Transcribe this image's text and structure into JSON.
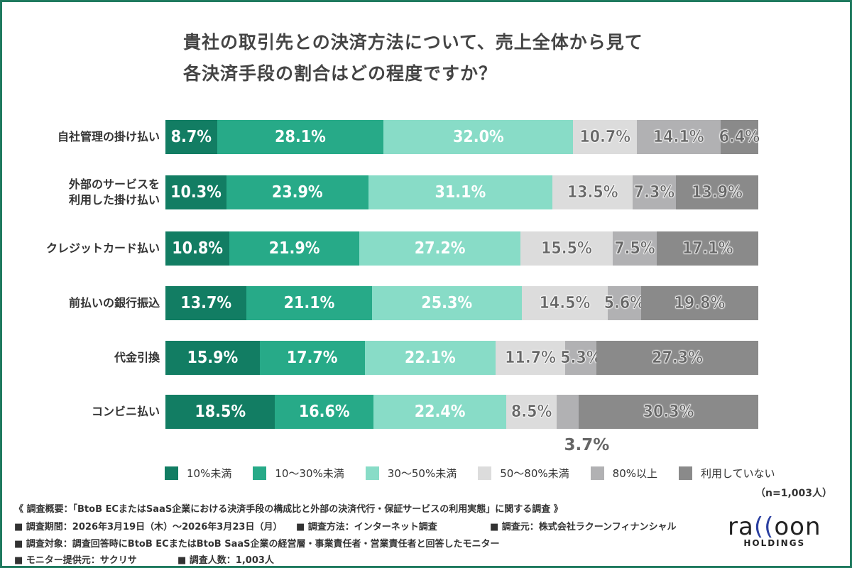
{
  "chart_data": {
    "type": "bar",
    "orientation": "horizontal",
    "stacked": true,
    "title": "貴社の取引先との決済方法について、売上全体から見て 各決済手段の割合はどの程度ですか？",
    "title_lines": [
      "貴社の取引先との決済方法について、売上全体から見て",
      "各決済手段の割合はどの程度ですか？"
    ],
    "categories": [
      "自社管理の掛け払い",
      "外部のサービスを利用した掛け払い",
      "クレジットカード払い",
      "前払いの銀行振込",
      "代金引換",
      "コンビニ払い"
    ],
    "category_lines": [
      [
        "自社管理の掛け払い"
      ],
      [
        "外部のサービスを",
        "利用した掛け払い"
      ],
      [
        "クレジットカード払い"
      ],
      [
        "前払いの銀行振込"
      ],
      [
        "代金引換"
      ],
      [
        "コンビニ払い"
      ]
    ],
    "series": [
      {
        "name": "10%未満",
        "color": "#127d63",
        "values": [
          8.7,
          10.3,
          10.8,
          13.7,
          15.9,
          18.5
        ]
      },
      {
        "name": "10～30%未満",
        "color": "#27aa88",
        "values": [
          28.1,
          23.9,
          21.9,
          21.1,
          17.7,
          16.6
        ]
      },
      {
        "name": "30～50%未満",
        "color": "#88dcc7",
        "values": [
          32.0,
          31.1,
          27.2,
          25.3,
          22.1,
          22.4
        ]
      },
      {
        "name": "50～80%未満",
        "color": "#dcdcdc",
        "values": [
          10.7,
          13.5,
          15.5,
          14.5,
          11.7,
          8.5
        ]
      },
      {
        "name": "80%以上",
        "color": "#b1b1b3",
        "values": [
          14.1,
          7.3,
          7.5,
          5.6,
          5.3,
          3.7
        ]
      },
      {
        "name": "利用していない",
        "color": "#8a8a8a",
        "values": [
          6.4,
          13.9,
          17.1,
          19.8,
          27.3,
          30.3
        ]
      }
    ],
    "unit": "%",
    "xlim": [
      0,
      100
    ],
    "grid": false,
    "legend": "bottom",
    "sample_size": "（n=1,003人）"
  },
  "footer": {
    "overview": "《 調査概要：「BtoB ECまたはSaaS企業における決済手段の構成比と外部の決済代行・保証サービスの利用実態」に関する調査 》",
    "period": "■ 調査期間：2026年3月19日（木）～2026年3月23日（月）",
    "method": "■ 調査方法：インターネット調査",
    "source": "■ 調査元：株式会社ラクーンフィナンシャル",
    "target": "■ 調査対象：調査回答時にBtoB ECまたはBtoB SaaS企業の経営層・事業責任者・営業責任者と回答したモニター",
    "provider": "■ モニター提供元：サクリサ",
    "count": "■ 調査人数：1,003人"
  },
  "logo": {
    "text": "raccoon",
    "sub": "HOLDINGS"
  },
  "colors": {
    "frame": "#1f7a5f"
  }
}
